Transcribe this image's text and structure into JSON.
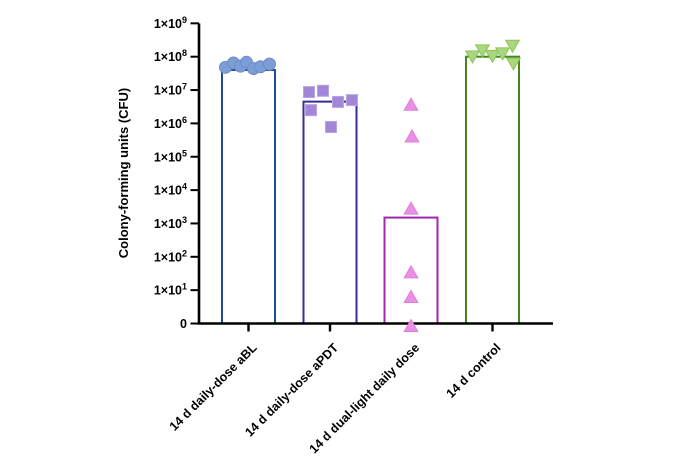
{
  "figure": {
    "background": "#ffffff",
    "axis_color": "#000000"
  },
  "chart_data": {
    "type": "bar",
    "subtype": "bar-with-scatter-overlay",
    "y_scale": "log10",
    "title": "",
    "ylabel": "Colony-forming units (CFU)",
    "xlabel": "",
    "grid": false,
    "legend": false,
    "y_tick_base": "1×10",
    "ytick_exponents": [
      9,
      8,
      7,
      6,
      5,
      4,
      3,
      2,
      1
    ],
    "y_zero_label": "0",
    "ylim": [
      0,
      1000000000
    ],
    "groups": [
      {
        "label": "14 d daily-dose aBL",
        "bar_value": 40000000,
        "bar_outline": "#1E4A9E",
        "marker": "circle",
        "marker_fill": "#7D9DD6",
        "marker_edge": "#6A8DC8",
        "points": [
          {
            "value": 48000000,
            "dx": -23
          },
          {
            "value": 65000000,
            "dx": -15
          },
          {
            "value": 52000000,
            "dx": -8
          },
          {
            "value": 68000000,
            "dx": -2
          },
          {
            "value": 44000000,
            "dx": 5
          },
          {
            "value": 50000000,
            "dx": 12
          },
          {
            "value": 60000000,
            "dx": 21
          }
        ]
      },
      {
        "label": "14 d daily-dose aPDT",
        "bar_value": 4500000,
        "bar_outline": "#3C2B8F",
        "marker": "square",
        "marker_fill": "#A287D8",
        "marker_edge": "#B9A2E6",
        "points": [
          {
            "value": 8700000,
            "dx": -21
          },
          {
            "value": 9500000,
            "dx": -7
          },
          {
            "value": 4400000,
            "dx": 8
          },
          {
            "value": 5000000,
            "dx": 22
          },
          {
            "value": 2500000,
            "dx": -19
          },
          {
            "value": 780000,
            "dx": 1
          }
        ]
      },
      {
        "label": "14 d dual-light daily dose",
        "bar_value": 1500,
        "bar_outline": "#A227AE",
        "marker": "triangle-up",
        "marker_fill": "#EA90E4",
        "marker_edge": "#E07CDB",
        "points": [
          {
            "value": 3500000,
            "dx": 0
          },
          {
            "value": 390000,
            "dx": 1
          },
          {
            "value": 2700,
            "dx": 0
          },
          {
            "value": 33,
            "dx": 0
          },
          {
            "value": 6,
            "dx": 0
          },
          {
            "value": 0,
            "dx": 0
          }
        ]
      },
      {
        "label": "14 d control",
        "bar_value": 100000000,
        "bar_outline": "#45851C",
        "marker": "triangle-down",
        "marker_fill": "#A8D77D",
        "marker_edge": "#8CC35B",
        "points": [
          {
            "value": 105000000,
            "dx": -20
          },
          {
            "value": 160000000,
            "dx": -10
          },
          {
            "value": 110000000,
            "dx": 0
          },
          {
            "value": 130000000,
            "dx": 10
          },
          {
            "value": 220000000,
            "dx": 20
          },
          {
            "value": 65000000,
            "dx": 21
          }
        ]
      }
    ]
  }
}
